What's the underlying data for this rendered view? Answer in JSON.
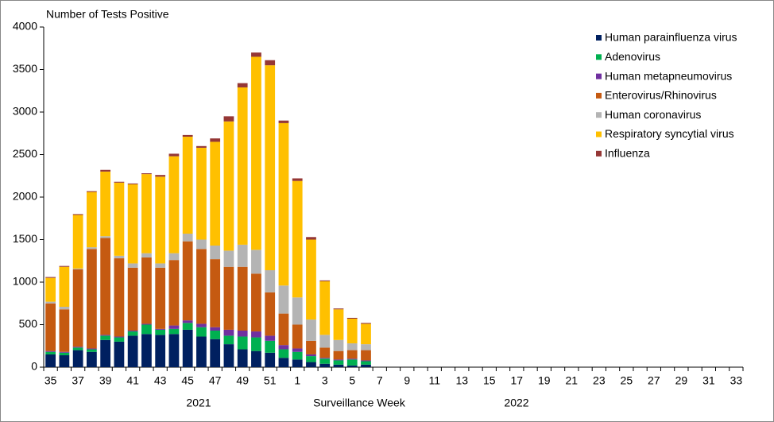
{
  "chart_data": {
    "type": "stacked_bar",
    "y_axis_title": "Number of Tests Positive",
    "x_axis_title": "Surveillance Week",
    "annotations": [
      "2021",
      "2022"
    ],
    "categories": [
      35,
      null,
      37,
      null,
      39,
      null,
      41,
      null,
      43,
      null,
      45,
      null,
      47,
      null,
      49,
      null,
      51,
      null,
      1,
      null,
      3,
      null,
      5,
      null,
      7,
      null,
      9,
      null,
      11,
      null,
      13,
      null,
      15,
      null,
      17,
      null,
      19,
      null,
      21,
      null,
      23,
      null,
      25,
      null,
      27,
      null,
      29,
      null,
      31,
      null,
      33
    ],
    "series": [
      {
        "name": "Human parainfluenza virus",
        "color": "#002060",
        "values": [
          150,
          140,
          200,
          180,
          320,
          300,
          370,
          390,
          380,
          390,
          440,
          360,
          330,
          270,
          210,
          190,
          170,
          110,
          90,
          60,
          40,
          30,
          20,
          30,
          null,
          null,
          null,
          null,
          null,
          null,
          null,
          null,
          null,
          null,
          null,
          null,
          null,
          null,
          null,
          null,
          null,
          null,
          null,
          null,
          null,
          null,
          null,
          null,
          null,
          null,
          null
        ]
      },
      {
        "name": "Adenovirus",
        "color": "#00b050",
        "values": [
          30,
          30,
          30,
          30,
          50,
          50,
          50,
          110,
          60,
          60,
          80,
          110,
          100,
          100,
          150,
          160,
          140,
          100,
          90,
          70,
          60,
          50,
          70,
          40,
          null,
          null,
          null,
          null,
          null,
          null,
          null,
          null,
          null,
          null,
          null,
          null,
          null,
          null,
          null,
          null,
          null,
          null,
          null,
          null,
          null,
          null,
          null,
          null,
          null,
          null,
          null
        ]
      },
      {
        "name": "Human metapneumovirus",
        "color": "#7030a0",
        "values": [
          10,
          10,
          10,
          10,
          10,
          10,
          10,
          10,
          10,
          40,
          30,
          40,
          40,
          70,
          70,
          70,
          60,
          50,
          40,
          20,
          10,
          10,
          10,
          10,
          null,
          null,
          null,
          null,
          null,
          null,
          null,
          null,
          null,
          null,
          null,
          null,
          null,
          null,
          null,
          null,
          null,
          null,
          null,
          null,
          null,
          null,
          null,
          null,
          null,
          null,
          null
        ]
      },
      {
        "name": "Enterovirus/Rhinovirus",
        "color": "#c55a11",
        "values": [
          560,
          500,
          910,
          1170,
          1140,
          920,
          740,
          780,
          720,
          770,
          930,
          880,
          800,
          740,
          750,
          680,
          510,
          370,
          280,
          160,
          120,
          100,
          100,
          120,
          null,
          null,
          null,
          null,
          null,
          null,
          null,
          null,
          null,
          null,
          null,
          null,
          null,
          null,
          null,
          null,
          null,
          null,
          null,
          null,
          null,
          null,
          null,
          null,
          null,
          null,
          null
        ]
      },
      {
        "name": "Human coronavirus",
        "color": "#b4b4b4",
        "values": [
          20,
          30,
          10,
          20,
          20,
          30,
          50,
          50,
          50,
          80,
          90,
          110,
          160,
          190,
          260,
          280,
          260,
          330,
          320,
          250,
          150,
          130,
          80,
          70,
          null,
          null,
          null,
          null,
          null,
          null,
          null,
          null,
          null,
          null,
          null,
          null,
          null,
          null,
          null,
          null,
          null,
          null,
          null,
          null,
          null,
          null,
          null,
          null,
          null,
          null,
          null
        ]
      },
      {
        "name": "Respiratory syncytial virus",
        "color": "#ffc000",
        "values": [
          280,
          470,
          630,
          650,
          760,
          860,
          930,
          930,
          1020,
          1140,
          1140,
          1080,
          1220,
          1520,
          1850,
          2270,
          2410,
          1910,
          1370,
          940,
          630,
          360,
          290,
          240,
          null,
          null,
          null,
          null,
          null,
          null,
          null,
          null,
          null,
          null,
          null,
          null,
          null,
          null,
          null,
          null,
          null,
          null,
          null,
          null,
          null,
          null,
          null,
          null,
          null,
          null,
          null
        ]
      },
      {
        "name": "Influenza",
        "color": "#953735",
        "values": [
          10,
          10,
          10,
          10,
          20,
          10,
          10,
          10,
          20,
          30,
          20,
          20,
          40,
          60,
          50,
          50,
          60,
          30,
          30,
          30,
          10,
          10,
          10,
          10,
          null,
          null,
          null,
          null,
          null,
          null,
          null,
          null,
          null,
          null,
          null,
          null,
          null,
          null,
          null,
          null,
          null,
          null,
          null,
          null,
          null,
          null,
          null,
          null,
          null,
          null,
          null
        ]
      }
    ],
    "ylim": [
      0,
      4000
    ],
    "yticks": [
      0,
      500,
      1000,
      1500,
      2000,
      2500,
      3000,
      3500,
      4000
    ],
    "legend": "upper right"
  }
}
